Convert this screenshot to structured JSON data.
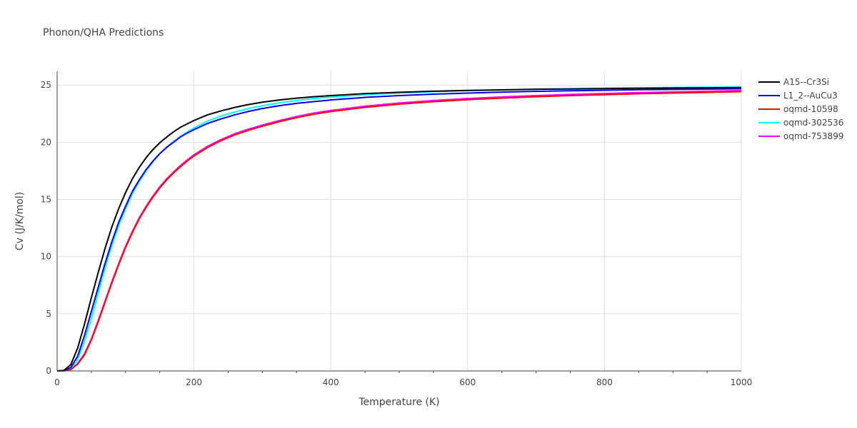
{
  "chart_data": {
    "type": "line",
    "title": "Phonon/QHA Predictions",
    "xlabel": "Temperature (K)",
    "ylabel": "Cv (J/K/mol)",
    "xlim": [
      0,
      1000
    ],
    "ylim": [
      0,
      26.2
    ],
    "xticks": [
      0,
      200,
      400,
      600,
      800,
      1000
    ],
    "yticks": [
      0,
      5,
      10,
      15,
      20,
      25
    ],
    "grid": true,
    "legend_position": "top-right",
    "x": [
      0,
      10,
      20,
      30,
      40,
      50,
      60,
      70,
      80,
      90,
      100,
      110,
      120,
      130,
      140,
      150,
      160,
      170,
      180,
      190,
      200,
      220,
      240,
      260,
      280,
      300,
      325,
      350,
      375,
      400,
      450,
      500,
      550,
      600,
      650,
      700,
      750,
      800,
      850,
      900,
      950,
      1000
    ],
    "series": [
      {
        "name": "A15--Cr3Si",
        "color": "#000000",
        "values": [
          0,
          0.05,
          0.55,
          2.0,
          4.1,
          6.4,
          8.6,
          10.7,
          12.6,
          14.2,
          15.6,
          16.8,
          17.8,
          18.65,
          19.35,
          19.95,
          20.45,
          20.9,
          21.3,
          21.6,
          21.9,
          22.4,
          22.75,
          23.05,
          23.3,
          23.5,
          23.7,
          23.85,
          23.98,
          24.08,
          24.25,
          24.37,
          24.46,
          24.53,
          24.58,
          24.63,
          24.66,
          24.69,
          24.72,
          24.74,
          24.76,
          24.78
        ]
      },
      {
        "name": "L1_2--AuCu3",
        "color": "#0000ee",
        "values": [
          0,
          0.03,
          0.3,
          1.3,
          3.1,
          5.2,
          7.3,
          9.4,
          11.3,
          13.0,
          14.4,
          15.7,
          16.7,
          17.6,
          18.35,
          19.0,
          19.55,
          20.0,
          20.45,
          20.8,
          21.1,
          21.65,
          22.05,
          22.4,
          22.7,
          22.95,
          23.2,
          23.4,
          23.55,
          23.7,
          23.92,
          24.08,
          24.2,
          24.3,
          24.38,
          24.45,
          24.5,
          24.55,
          24.59,
          24.62,
          24.65,
          24.68
        ]
      },
      {
        "name": "oqmd-10598",
        "color": "#ff0000",
        "values": [
          0,
          0.01,
          0.12,
          0.6,
          1.4,
          2.7,
          4.3,
          6.0,
          7.7,
          9.3,
          10.8,
          12.1,
          13.3,
          14.3,
          15.2,
          16.0,
          16.7,
          17.3,
          17.85,
          18.35,
          18.8,
          19.55,
          20.15,
          20.65,
          21.05,
          21.4,
          21.8,
          22.15,
          22.45,
          22.68,
          23.05,
          23.33,
          23.55,
          23.72,
          23.86,
          23.98,
          24.08,
          24.16,
          24.24,
          24.3,
          24.36,
          24.42
        ]
      },
      {
        "name": "oqmd-302536",
        "color": "#00ffff",
        "values": [
          0,
          0.02,
          0.2,
          1.0,
          2.6,
          4.6,
          6.8,
          9.0,
          11.0,
          12.7,
          14.2,
          15.5,
          16.6,
          17.5,
          18.3,
          19.0,
          19.55,
          20.05,
          20.5,
          20.9,
          21.25,
          21.85,
          22.3,
          22.65,
          22.95,
          23.2,
          23.45,
          23.65,
          23.82,
          23.95,
          24.15,
          24.3,
          24.42,
          24.51,
          24.58,
          24.64,
          24.69,
          24.73,
          24.76,
          24.79,
          24.81,
          24.83
        ]
      },
      {
        "name": "oqmd-753899",
        "color": "#ff00ff",
        "values": [
          0,
          0.01,
          0.14,
          0.65,
          1.5,
          2.8,
          4.4,
          6.1,
          7.8,
          9.4,
          10.9,
          12.2,
          13.4,
          14.4,
          15.3,
          16.1,
          16.8,
          17.4,
          17.95,
          18.45,
          18.9,
          19.65,
          20.25,
          20.75,
          21.15,
          21.5,
          21.9,
          22.25,
          22.55,
          22.78,
          23.15,
          23.43,
          23.65,
          23.82,
          23.96,
          24.08,
          24.18,
          24.26,
          24.34,
          24.4,
          24.46,
          24.52
        ]
      }
    ]
  }
}
